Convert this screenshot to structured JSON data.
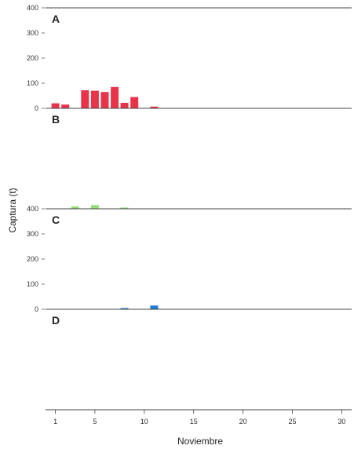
{
  "chart_data": {
    "type": "bar",
    "xlabel": "Noviembre",
    "ylabel": "Captura (t)",
    "x_ticks": [
      1,
      5,
      10,
      15,
      20,
      25,
      30
    ],
    "xlim": [
      0,
      31
    ],
    "y_ticks": [
      0,
      100,
      200,
      300,
      400
    ],
    "ylim": [
      0,
      400
    ],
    "grid": false,
    "panels": [
      {
        "label": "A",
        "color": "#e8344a",
        "show_y_ticks": true,
        "x": [
          1,
          2,
          4,
          5,
          6,
          7,
          8,
          9,
          11
        ],
        "values": [
          20,
          15,
          72,
          70,
          65,
          85,
          22,
          45,
          7
        ]
      },
      {
        "label": "B",
        "color": "#99dd7a",
        "show_y_ticks": false,
        "x": [
          3,
          5,
          8
        ],
        "values": [
          10,
          15,
          5
        ]
      },
      {
        "label": "C",
        "color": "#1f7fd6",
        "show_y_ticks": true,
        "x": [
          8,
          11
        ],
        "values": [
          5,
          15
        ]
      },
      {
        "label": "D",
        "color": "#666666",
        "show_y_ticks": false,
        "x": [],
        "values": []
      }
    ]
  }
}
